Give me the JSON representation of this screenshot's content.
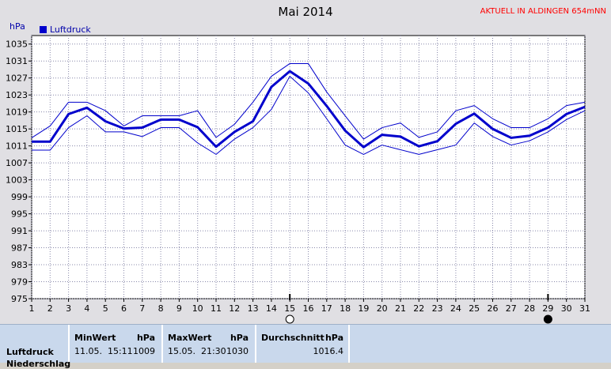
{
  "header": {
    "title": "Mai 2014",
    "station": "AKTUELL IN ALDINGEN 654mNN",
    "unit": "hPa",
    "legend_label": "Luftdruck"
  },
  "colors": {
    "main_line": "#0000cc",
    "band_line": "#0000cc",
    "grid": "#8888aa",
    "axis": "#000000"
  },
  "chart_data": {
    "type": "line",
    "title": "Mai 2014",
    "ylabel": "hPa",
    "ylim": [
      975,
      1037
    ],
    "yticks": [
      975,
      979,
      983,
      987,
      991,
      995,
      999,
      1003,
      1007,
      1011,
      1015,
      1019,
      1023,
      1027,
      1031,
      1035
    ],
    "x": [
      1,
      2,
      3,
      4,
      5,
      6,
      7,
      8,
      9,
      10,
      11,
      12,
      13,
      14,
      15,
      16,
      17,
      18,
      19,
      20,
      21,
      22,
      23,
      24,
      25,
      26,
      27,
      28,
      29,
      30,
      31
    ],
    "series": [
      {
        "name": "Luftdruck",
        "values": [
          1012.0,
          1012.0,
          1018.5,
          1020.0,
          1016.8,
          1015.1,
          1015.3,
          1017.2,
          1017.2,
          1015.4,
          1010.8,
          1014.3,
          1016.8,
          1024.9,
          1028.6,
          1025.7,
          1020.4,
          1014.6,
          1010.7,
          1013.6,
          1013.2,
          1010.9,
          1012.1,
          1016.2,
          1018.6,
          1015.0,
          1012.9,
          1013.4,
          1015.3,
          1018.5,
          1020.2
        ]
      },
      {
        "name": "",
        "values": [
          1012.9,
          1015.7,
          1021.3,
          1021.3,
          1019.3,
          1015.7,
          1018.1,
          1018.1,
          1018.1,
          1019.3,
          1013.0,
          1016.1,
          1021.3,
          1027.4,
          1030.4,
          1030.4,
          1023.7,
          1018.1,
          1012.6,
          1015.3,
          1016.4,
          1013.0,
          1014.3,
          1019.3,
          1020.5,
          1017.4,
          1015.3,
          1015.3,
          1017.4,
          1020.5,
          1021.3
        ]
      },
      {
        "name": "",
        "values": [
          1010.0,
          1010.0,
          1015.3,
          1018.1,
          1014.3,
          1014.3,
          1013.2,
          1015.3,
          1015.3,
          1011.7,
          1009.0,
          1012.6,
          1015.3,
          1019.6,
          1027.4,
          1023.5,
          1017.4,
          1011.2,
          1009.0,
          1011.2,
          1010.1,
          1009.0,
          1010.1,
          1011.2,
          1016.4,
          1013.2,
          1011.2,
          1012.2,
          1014.3,
          1017.2,
          1019.3
        ]
      }
    ],
    "moon_markers": [
      {
        "day": 15,
        "phase": "full"
      },
      {
        "day": 29,
        "phase": "new"
      }
    ],
    "grid": true
  },
  "stats": {
    "row_label": "Luftdruck",
    "row_label2": "Niederschlag",
    "min_header": "MinWert",
    "min_unit": "hPa",
    "min_datetime": "11.05.  15:11",
    "min_value": "1009",
    "max_header": "MaxWert",
    "max_unit": "hPa",
    "max_datetime": "15.05.  21:30",
    "max_value": "1030",
    "avg_header": "Durchschnitt",
    "avg_unit": "hPa",
    "avg_value": "1016.4"
  }
}
